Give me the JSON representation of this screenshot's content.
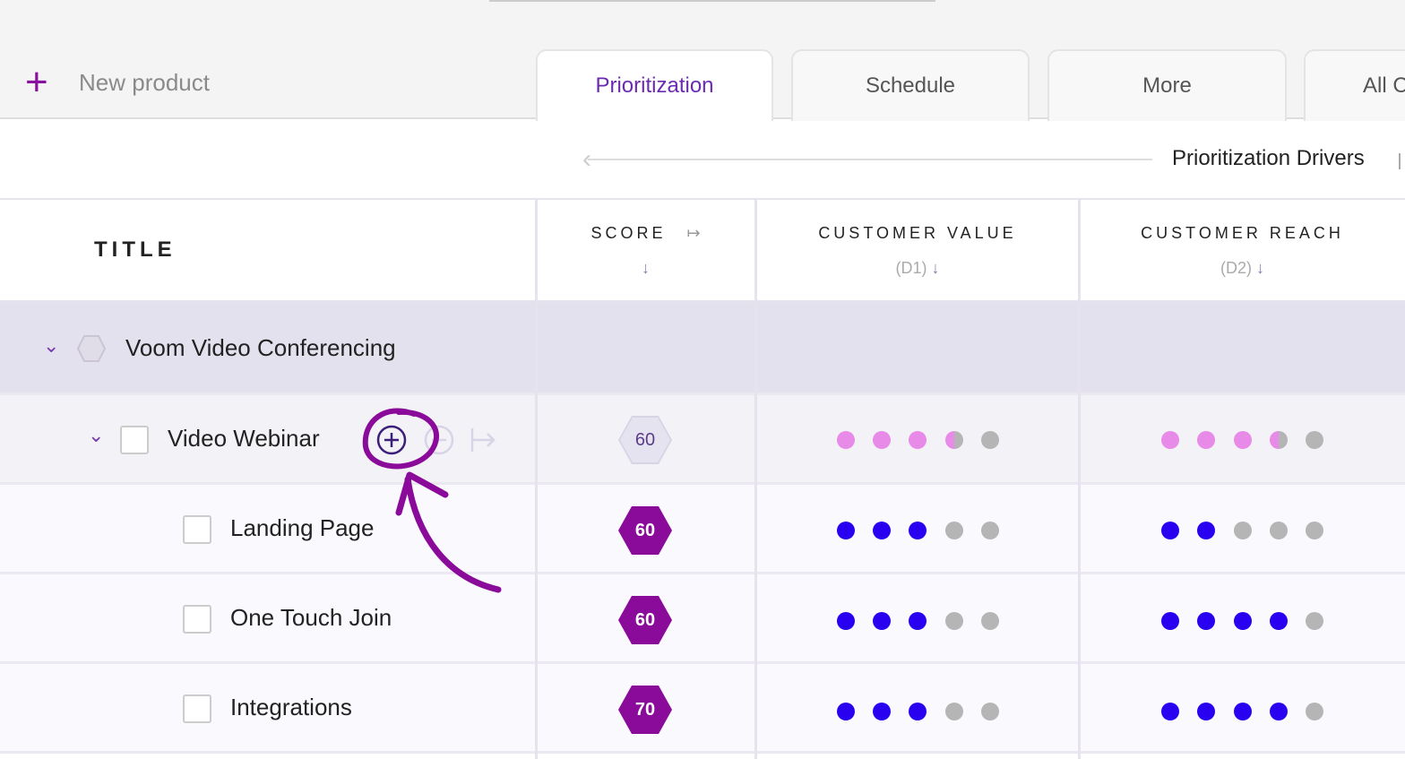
{
  "toolbar": {
    "new_product": "New product"
  },
  "tabs": [
    "Prioritization",
    "Schedule",
    "More",
    "All C"
  ],
  "drivers": {
    "label": "Prioritization Drivers"
  },
  "columns": {
    "title": "TITLE",
    "score": "SCORE",
    "score_sort": "↓",
    "cv": "CUSTOMER VALUE",
    "cv_sub": "(D1)",
    "cr": "CUSTOMER REACH",
    "cr_sub": "(D2)",
    "sort_icon": "↓"
  },
  "colors": {
    "accent": "#8a0a9a",
    "tab_active": "#6a2bb0",
    "dot_filled": "#2a00f0",
    "dot_partial": "#e88ae8",
    "dot_empty": "#b5b5b5"
  },
  "group": {
    "title": "Voom Video Conferencing"
  },
  "rows": [
    {
      "title": "Video Webinar",
      "score": "60",
      "customer_value": 3.5,
      "customer_reach": 3.5,
      "level": "parent"
    },
    {
      "title": "Landing Page",
      "score": "60",
      "customer_value": 3,
      "customer_reach": 2,
      "level": "child"
    },
    {
      "title": "One Touch Join",
      "score": "60",
      "customer_value": 3,
      "customer_reach": 4,
      "level": "child"
    },
    {
      "title": "Integrations",
      "score": "70",
      "customer_value": 3,
      "customer_reach": 4,
      "level": "child"
    }
  ],
  "scale_max": 5
}
